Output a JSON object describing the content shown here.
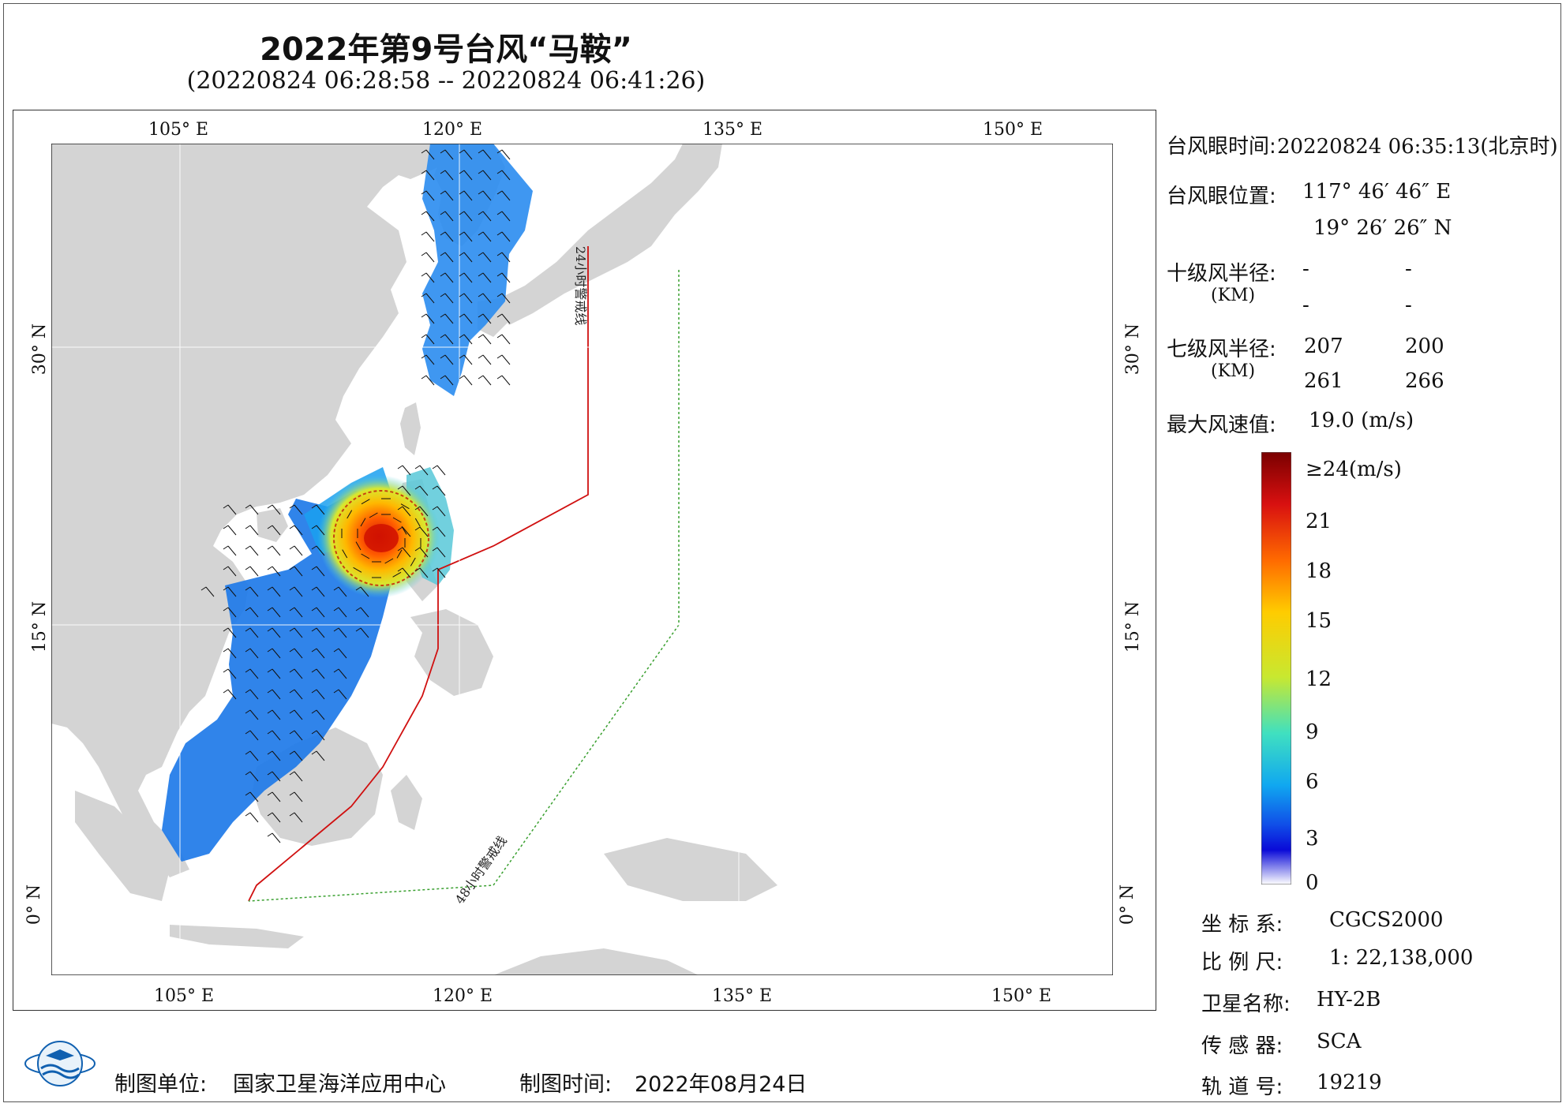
{
  "title": "2022年第9号台风“马鞍”",
  "subtitle": "(20220824 06:28:58 -- 20220824 06:41:26)",
  "map": {
    "lon_ticks_top": [
      "105° E",
      "120° E",
      "135° E",
      "150° E"
    ],
    "lon_ticks_bottom": [
      "105° E",
      "120° E",
      "135° E",
      "150° E"
    ],
    "lat_ticks_left": [
      "30° N",
      "15° N",
      "0° N"
    ],
    "lat_ticks_right": [
      "30° N",
      "15° N",
      "0° N"
    ],
    "warning_line_24h": "24小时警戒线",
    "warning_line_48h": "48小时警戒线",
    "colors": {
      "land": "#d4d4d4",
      "sea": "#ffffff",
      "warn24": "#d01010",
      "warn48": "#3aa030"
    }
  },
  "info": {
    "eye_time_label": "台风眼时间:",
    "eye_time_value": "20220824 06:35:13(北京时)",
    "eye_pos_label": "台风眼位置:",
    "eye_lon": "117° 46′ 46″ E",
    "eye_lat": "19° 26′ 26″ N",
    "r10_label": "十级风半径:",
    "r10_unit": "(KM)",
    "r10_values": [
      "-",
      "-",
      "-",
      "-"
    ],
    "r7_label": "七级风半径:",
    "r7_unit": "(KM)",
    "r7_values": [
      "207",
      "200",
      "261",
      "266"
    ],
    "max_wind_label": "最大风速值:",
    "max_wind_value": "19.0 (m/s)"
  },
  "colorbar": {
    "labels": [
      "≥24(m/s)",
      "21",
      "18",
      "15",
      "12",
      "9",
      "6",
      "3",
      "0"
    ],
    "colors": [
      "#7a0000",
      "#d81010",
      "#ff6a00",
      "#ffcc00",
      "#c8e830",
      "#40e0c0",
      "#10a8f0",
      "#1050e8",
      "#0a0ad8",
      "#ffffff"
    ]
  },
  "meta": {
    "crs_label": "坐 标 系:",
    "crs_value": "CGCS2000",
    "scale_label": "比 例 尺:",
    "scale_value": "1: 22,138,000",
    "satellite_label": "卫星名称:",
    "satellite_value": "HY-2B",
    "sensor_label": "传 感 器:",
    "sensor_value": "SCA",
    "orbit_label": "轨 道 号:",
    "orbit_value": "19219"
  },
  "footer": {
    "producer_label": "制图单位:",
    "producer_value": "国家卫星海洋应用中心",
    "date_label": "制图时间:",
    "date_value": "2022年08月24日"
  }
}
